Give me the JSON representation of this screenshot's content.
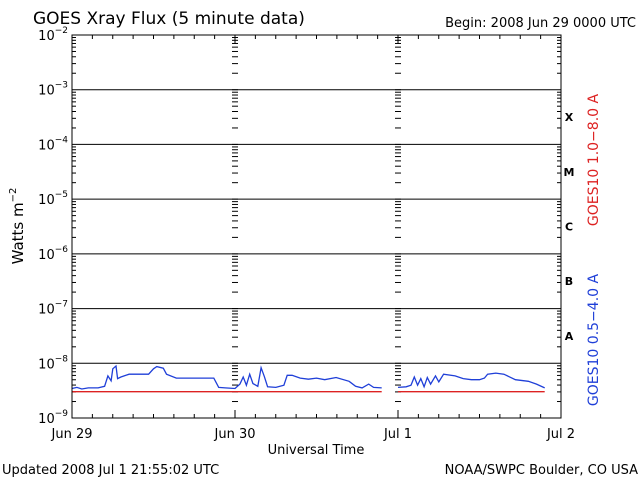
{
  "chart_data": {
    "type": "line",
    "title": "GOES Xray Flux (5 minute data)",
    "begin_label": "Begin:  2008 Jun 29 0000 UTC",
    "xlabel": "Universal Time",
    "ylabel_base": "Watts m",
    "ylabel_exp": "−2",
    "updated": "Updated 2008 Jul  1 21:55:02 UTC",
    "source": "NOAA/SWPC Boulder, CO USA",
    "y_scale": "log",
    "ylim_exp": [
      -9,
      -2
    ],
    "y_ticks": [
      {
        "base": "10",
        "exp": "−2",
        "value": -2
      },
      {
        "base": "10",
        "exp": "−3",
        "value": -3
      },
      {
        "base": "10",
        "exp": "−4",
        "value": -4
      },
      {
        "base": "10",
        "exp": "−5",
        "value": -5
      },
      {
        "base": "10",
        "exp": "−6",
        "value": -6
      },
      {
        "base": "10",
        "exp": "−7",
        "value": -7
      },
      {
        "base": "10",
        "exp": "−8",
        "value": -8
      },
      {
        "base": "10",
        "exp": "−9",
        "value": -9
      }
    ],
    "x_range_days": [
      0,
      3
    ],
    "x_ticks": [
      {
        "label": "Jun 29",
        "day": 0
      },
      {
        "label": "Jun 30",
        "day": 1
      },
      {
        "label": "Jul 1",
        "day": 2
      },
      {
        "label": "Jul 2",
        "day": 3
      }
    ],
    "flare_classes": [
      {
        "label": "X",
        "value": -3.5
      },
      {
        "label": "M",
        "value": -4.5
      },
      {
        "label": "C",
        "value": -5.5
      },
      {
        "label": "B",
        "value": -6.5
      },
      {
        "label": "A",
        "value": -7.5
      }
    ],
    "series": [
      {
        "name": "GOES10 1.0−8.0 A",
        "color": "#dd2222",
        "log_values": [
          [
            0.0,
            -8.52
          ],
          [
            1.9,
            -8.52
          ]
        ]
      },
      {
        "name": "GOES10 0.5−4.0 A",
        "color": "#1f3fd8",
        "log_values": [
          [
            0.0,
            -8.46
          ],
          [
            0.03,
            -8.44
          ],
          [
            0.06,
            -8.47
          ],
          [
            0.1,
            -8.45
          ],
          [
            0.16,
            -8.45
          ],
          [
            0.2,
            -8.42
          ],
          [
            0.22,
            -8.23
          ],
          [
            0.24,
            -8.32
          ],
          [
            0.25,
            -8.1
          ],
          [
            0.27,
            -8.05
          ],
          [
            0.28,
            -8.28
          ],
          [
            0.3,
            -8.25
          ],
          [
            0.35,
            -8.2
          ],
          [
            0.4,
            -8.2
          ],
          [
            0.47,
            -8.2
          ],
          [
            0.5,
            -8.1
          ],
          [
            0.52,
            -8.06
          ],
          [
            0.56,
            -8.09
          ],
          [
            0.58,
            -8.2
          ],
          [
            0.64,
            -8.27
          ],
          [
            0.72,
            -8.27
          ],
          [
            0.8,
            -8.27
          ],
          [
            0.87,
            -8.27
          ],
          [
            0.9,
            -8.44
          ],
          [
            0.94,
            -8.45
          ],
          [
            1.0,
            -8.46
          ],
          [
            1.03,
            -8.38
          ],
          [
            1.05,
            -8.25
          ],
          [
            1.07,
            -8.4
          ],
          [
            1.09,
            -8.2
          ],
          [
            1.11,
            -8.37
          ],
          [
            1.14,
            -8.42
          ],
          [
            1.16,
            -8.08
          ],
          [
            1.18,
            -8.24
          ],
          [
            1.2,
            -8.43
          ],
          [
            1.25,
            -8.44
          ],
          [
            1.3,
            -8.4
          ],
          [
            1.32,
            -8.22
          ],
          [
            1.35,
            -8.22
          ],
          [
            1.4,
            -8.27
          ],
          [
            1.45,
            -8.29
          ],
          [
            1.5,
            -8.27
          ],
          [
            1.55,
            -8.3
          ],
          [
            1.62,
            -8.26
          ],
          [
            1.7,
            -8.33
          ],
          [
            1.74,
            -8.42
          ],
          [
            1.78,
            -8.45
          ],
          [
            1.82,
            -8.38
          ],
          [
            1.85,
            -8.44
          ],
          [
            1.9,
            -8.45
          ]
        ]
      },
      {
        "name": "GOES10 1.0−8.0 A",
        "color": "#dd2222",
        "log_values": [
          [
            2.0,
            -8.52
          ],
          [
            2.9,
            -8.52
          ]
        ]
      },
      {
        "name": "GOES10 0.5−4.0 A",
        "color": "#1f3fd8",
        "log_values": [
          [
            2.0,
            -8.44
          ],
          [
            2.05,
            -8.43
          ],
          [
            2.08,
            -8.4
          ],
          [
            2.1,
            -8.25
          ],
          [
            2.12,
            -8.4
          ],
          [
            2.14,
            -8.28
          ],
          [
            2.16,
            -8.43
          ],
          [
            2.18,
            -8.26
          ],
          [
            2.2,
            -8.38
          ],
          [
            2.23,
            -8.23
          ],
          [
            2.25,
            -8.34
          ],
          [
            2.28,
            -8.2
          ],
          [
            2.35,
            -8.23
          ],
          [
            2.4,
            -8.28
          ],
          [
            2.45,
            -8.3
          ],
          [
            2.5,
            -8.3
          ],
          [
            2.53,
            -8.27
          ],
          [
            2.55,
            -8.2
          ],
          [
            2.6,
            -8.18
          ],
          [
            2.65,
            -8.2
          ],
          [
            2.72,
            -8.3
          ],
          [
            2.8,
            -8.33
          ],
          [
            2.85,
            -8.38
          ],
          [
            2.9,
            -8.45
          ]
        ]
      }
    ],
    "legend": [
      {
        "text": "GOES10 1.0−8.0 A",
        "color": "#dd2222"
      },
      {
        "text": "GOES10 0.5−4.0 A",
        "color": "#1f3fd8"
      }
    ]
  }
}
